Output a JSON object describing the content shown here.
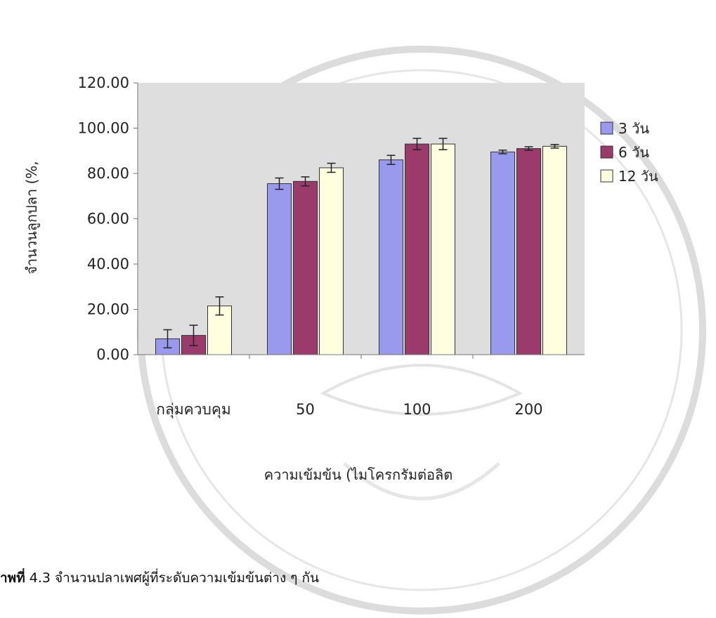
{
  "chart_data": {
    "type": "bar",
    "ylabel": "จำนวนลูกปลา (%,",
    "xlabel": "ความเข้มข้น (ไมโครกรัมต่อลิต",
    "categories": [
      "กลุ่มควบคุม",
      "50",
      "100",
      "200"
    ],
    "y_ticks": [
      "0.00",
      "20.00",
      "40.00",
      "60.00",
      "80.00",
      "100.00",
      "120.00"
    ],
    "ylim": [
      0,
      120
    ],
    "grid": false,
    "legend_position": "right",
    "series": [
      {
        "name": "3 วัน",
        "color": "#9999ee",
        "values": [
          7,
          75.5,
          86,
          89.5
        ],
        "errors": [
          4,
          2.5,
          2,
          0.8
        ]
      },
      {
        "name": "6 วัน",
        "color": "#9a3b6b",
        "values": [
          8.5,
          76.5,
          93,
          91
        ],
        "errors": [
          4.5,
          2,
          2.5,
          0.8
        ]
      },
      {
        "name": "12 วัน",
        "color": "#ffffe0",
        "values": [
          21.5,
          82.5,
          93,
          92
        ],
        "errors": [
          4,
          2,
          2.5,
          0.8
        ]
      }
    ]
  },
  "caption": {
    "prefix": "าพที่",
    "number": " 4.3",
    "text": " จำนวนปลาเพศผู้ที่ระดับความเข้มข้นต่าง ๆ กัน"
  }
}
